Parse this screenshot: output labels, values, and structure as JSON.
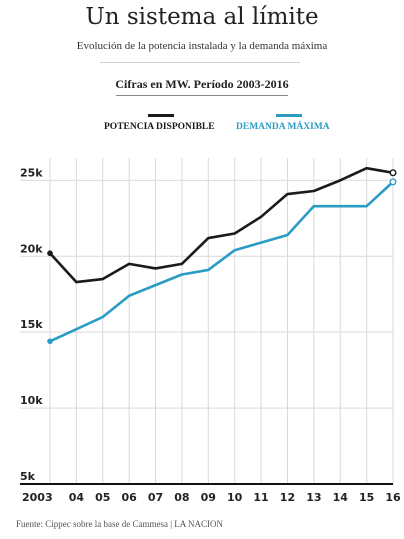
{
  "title": "Un sistema al límite",
  "subtitle": "Evolución de la potencia instalada y la demanda máxima",
  "units_note": "Cifras en MW. Período 2003-2016",
  "source": "Fuente: Cippec sobre la base de Cammesa | LA NACION",
  "chart_data": {
    "type": "line",
    "x": [
      "2003",
      "04",
      "05",
      "06",
      "07",
      "08",
      "09",
      "10",
      "11",
      "12",
      "13",
      "14",
      "15",
      "16"
    ],
    "y_ticks": [
      "5k",
      "10k",
      "15k",
      "20k",
      "25k"
    ],
    "ylim": [
      5000,
      27000
    ],
    "grid": true,
    "legend_placement": "top",
    "series": [
      {
        "name": "POTENCIA DISPONIBLE",
        "color": "#1a1a1a",
        "values": [
          20200,
          18300,
          18500,
          19500,
          19200,
          19500,
          21200,
          21500,
          22600,
          24100,
          24300,
          25000,
          25800,
          25500
        ]
      },
      {
        "name": "DEMANDA MÁXIMA",
        "color": "#2b9cc4",
        "values": [
          14400,
          15200,
          16000,
          17400,
          18100,
          18800,
          19100,
          20400,
          20900,
          21400,
          23300,
          23300,
          23300,
          24900
        ]
      }
    ]
  }
}
